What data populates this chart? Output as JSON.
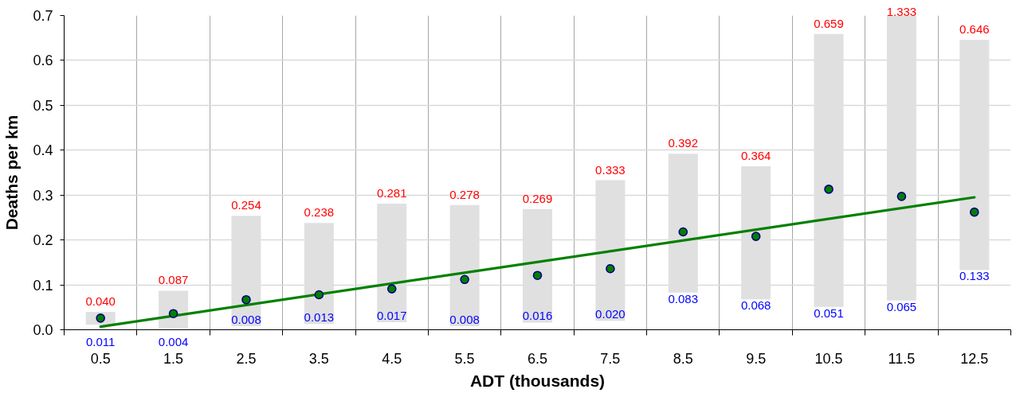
{
  "chart_data": {
    "type": "bar",
    "xlabel": "ADT (thousands)",
    "ylabel": "Deaths per km",
    "categories": [
      "0.5",
      "1.5",
      "2.5",
      "3.5",
      "4.5",
      "5.5",
      "6.5",
      "7.5",
      "8.5",
      "9.5",
      "10.5",
      "11.5",
      "12.5"
    ],
    "ylim": [
      0,
      0.7
    ],
    "yticks": [
      {
        "value": 0,
        "label": "0.0"
      },
      0.1,
      0.2,
      0.3,
      0.4,
      0.5,
      0.6,
      0.7
    ],
    "grid": true,
    "series": [
      {
        "color": "#e0e0e0",
        "base": [
          0.011,
          0.004,
          0.008,
          0.013,
          0.017,
          0.008,
          0.016,
          0.02,
          0.083,
          0.068,
          0.051,
          0.065,
          0.133
        ],
        "values": [
          0.029,
          0.083,
          0.246,
          0.225,
          0.264,
          0.27,
          0.253,
          0.313,
          0.309,
          0.296,
          0.608,
          1.268,
          0.513
        ]
      },
      {
        "type": "scatter",
        "color": "#008000",
        "marker": "circle",
        "values": [
          0.026,
          0.036,
          0.067,
          0.078,
          0.091,
          0.112,
          0.121,
          0.136,
          0.218,
          0.208,
          0.313,
          0.297,
          0.262
        ]
      },
      {
        "type": "line",
        "color": "#008000",
        "x": [
          "0.5",
          "12.5"
        ],
        "values": [
          0.007,
          0.295
        ]
      }
    ],
    "annotations": [
      {
        "text": "0.040",
        "x": "0.5",
        "y": 0.04
      },
      {
        "text": "0.011",
        "x": "0.5",
        "y": 0.011
      },
      {
        "text": "0.087",
        "x": "1.5",
        "y": 0.087
      },
      {
        "text": "0.004",
        "x": "1.5",
        "y": 0.004
      },
      {
        "text": "0.254",
        "x": "2.5",
        "y": 0.254
      },
      {
        "text": "0.008",
        "x": "2.5",
        "y": 0.008
      },
      {
        "text": "0.238",
        "x": "3.5",
        "y": 0.238
      },
      {
        "text": "0.013",
        "x": "3.5",
        "y": 0.013
      },
      {
        "text": "0.281",
        "x": "4.5",
        "y": 0.281
      },
      {
        "text": "0.017",
        "x": "4.5",
        "y": 0.017
      },
      {
        "text": "0.278",
        "x": "5.5",
        "y": 0.278
      },
      {
        "text": "0.008",
        "x": "5.5",
        "y": 0.008
      },
      {
        "text": "0.269",
        "x": "6.5",
        "y": 0.269
      },
      {
        "text": "0.016",
        "x": "6.5",
        "y": 0.016
      },
      {
        "text": "0.333",
        "x": "7.5",
        "y": 0.333
      },
      {
        "text": "0.020",
        "x": "7.5",
        "y": 0.02
      },
      {
        "text": "0.392",
        "x": "8.5",
        "y": 0.392
      },
      {
        "text": "0.083",
        "x": "8.5",
        "y": 0.083
      },
      {
        "text": "0.364",
        "x": "9.5",
        "y": 0.364
      },
      {
        "text": "0.068",
        "x": "9.5",
        "y": 0.068
      },
      {
        "text": "0.659",
        "x": "10.5",
        "y": 0.659
      },
      {
        "text": "0.051",
        "x": "10.5",
        "y": 0.051
      },
      "1.333",
      {
        "text": "0.065",
        "x": "11.5",
        "y": 0.065
      },
      {
        "text": "0.646",
        "x": "12.5",
        "y": 0.646
      },
      {
        "text": "0.133",
        "x": "12.5",
        "y": 0.133
      }
    ]
  }
}
